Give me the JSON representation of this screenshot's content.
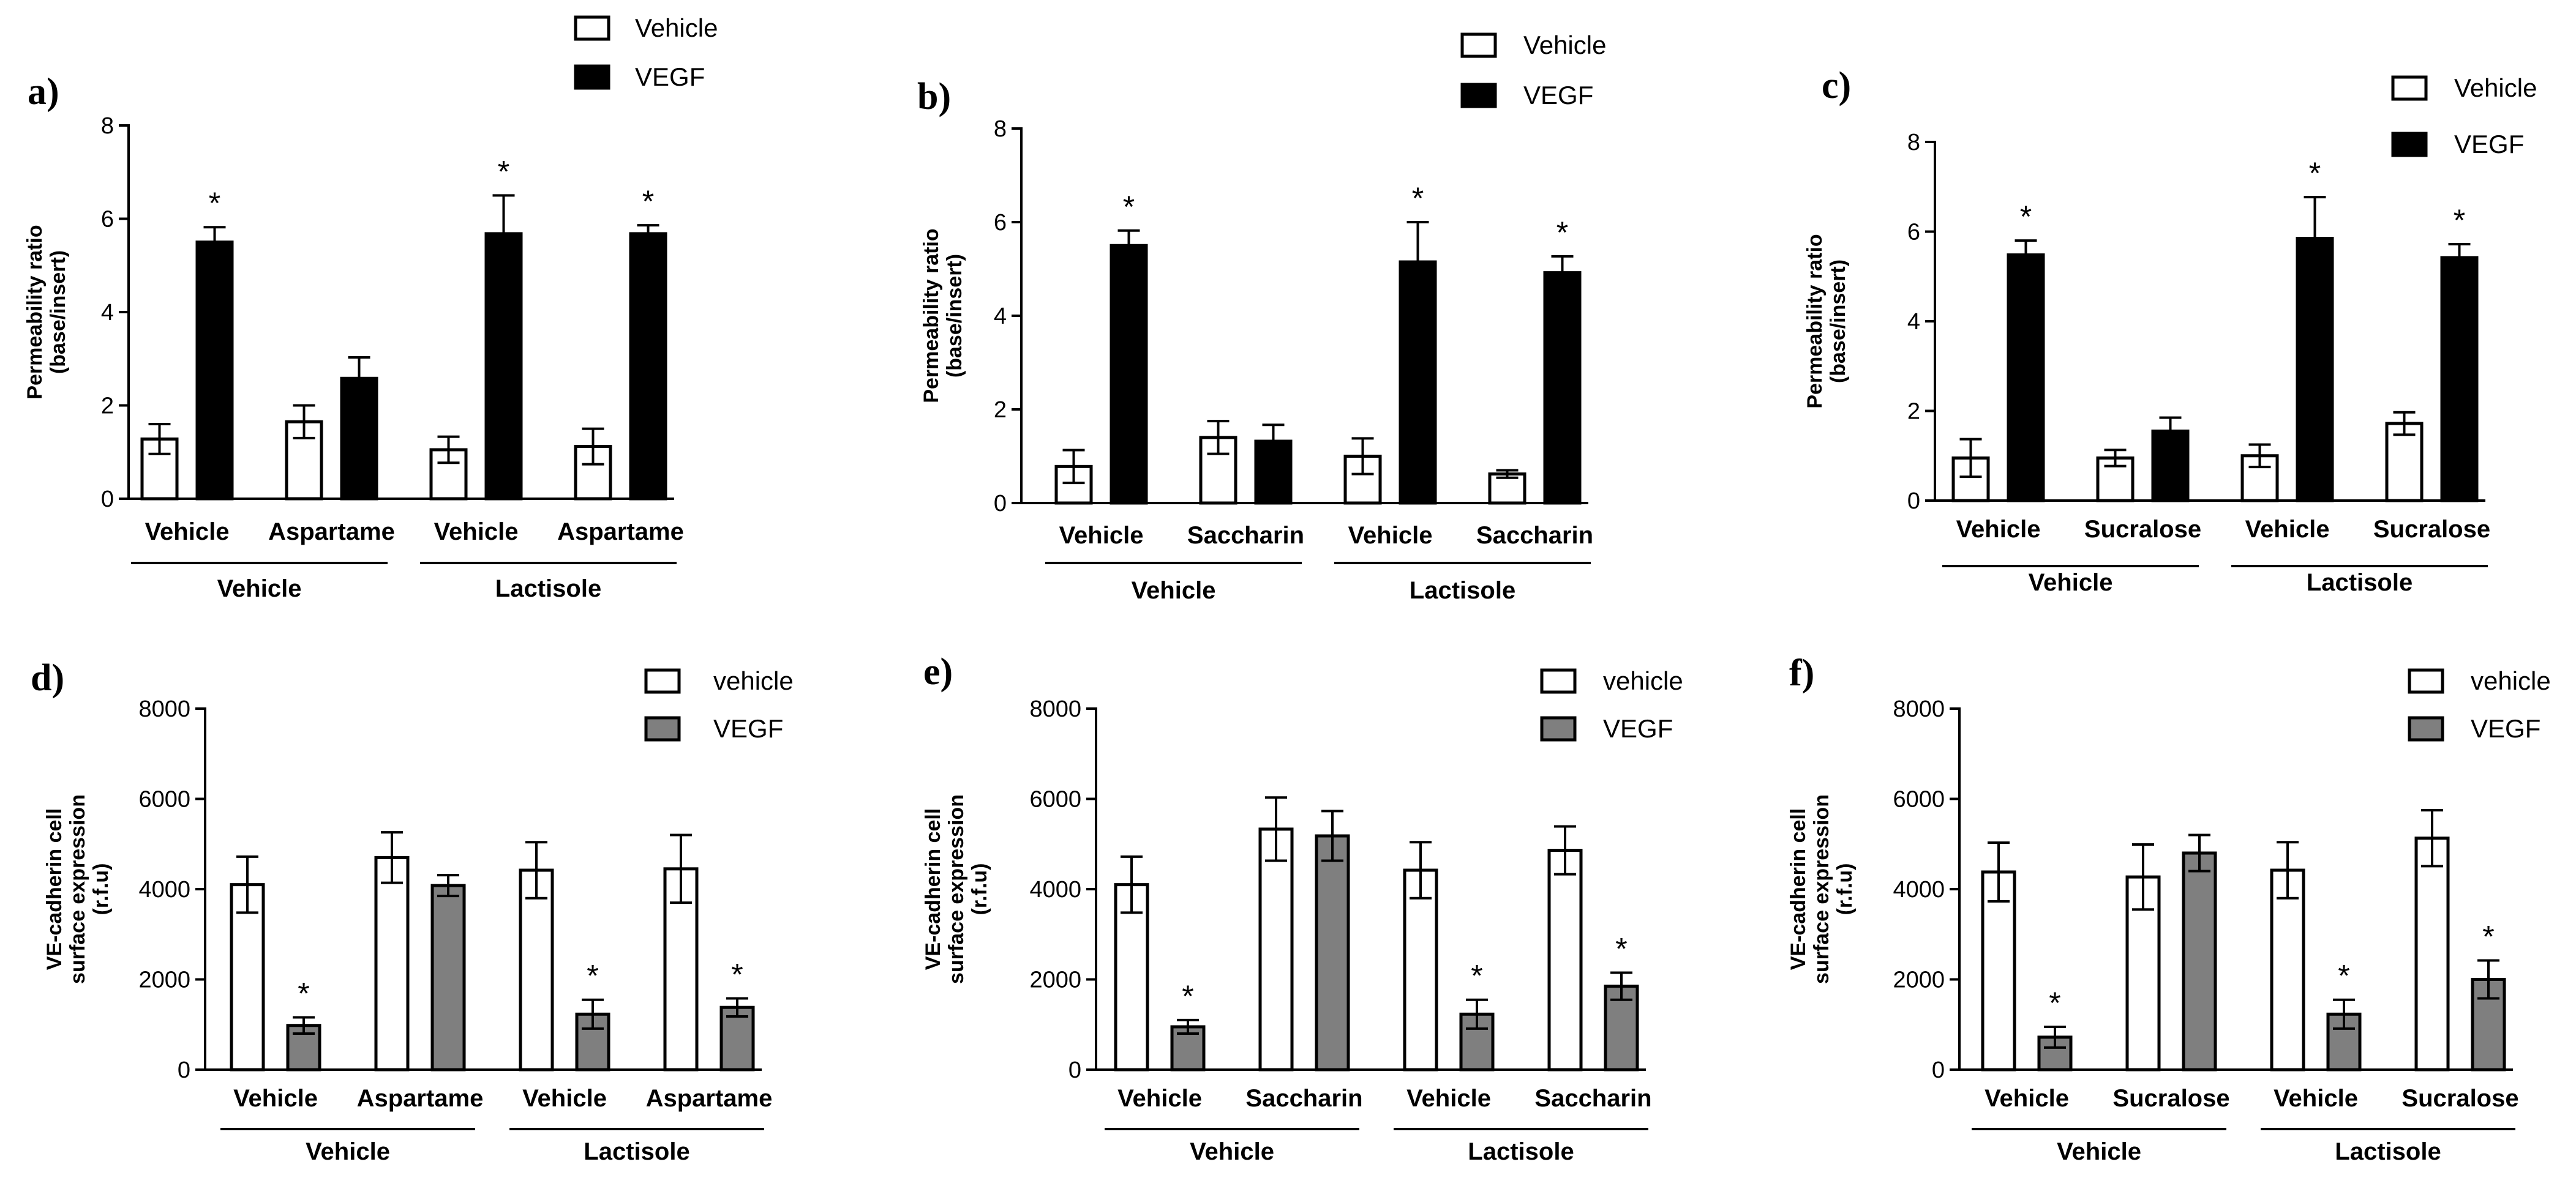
{
  "figure": {
    "panels": [
      "a",
      "b",
      "c",
      "d",
      "e",
      "f"
    ]
  },
  "chart_data": [
    {
      "panel": "a)",
      "type": "bar",
      "ylabel_lines": [
        "Permeability ratio",
        "(base/insert)"
      ],
      "ylim": [
        0,
        8
      ],
      "yticks": [
        0,
        2,
        4,
        6,
        8
      ],
      "categories": [
        "Vehicle",
        "Aspartame",
        "Vehicle",
        "Aspartame"
      ],
      "groups": [
        {
          "label": "Vehicle",
          "categories": [
            0,
            1
          ]
        },
        {
          "label": "Lactisole",
          "categories": [
            2,
            3
          ]
        }
      ],
      "legend": [
        {
          "label": "Vehicle",
          "style": "white"
        },
        {
          "label": "VEGF",
          "style": "black"
        }
      ],
      "series": [
        {
          "name": "Vehicle",
          "values": [
            1.28,
            1.65,
            1.05,
            1.12
          ],
          "errors": [
            0.32,
            0.35,
            0.28,
            0.38
          ]
        },
        {
          "name": "VEGF",
          "values": [
            5.5,
            2.58,
            5.68,
            5.68
          ],
          "errors": [
            0.32,
            0.45,
            0.82,
            0.18
          ]
        }
      ],
      "significance": [
        [
          false,
          true
        ],
        [
          false,
          false
        ],
        [
          false,
          true
        ],
        [
          false,
          true
        ]
      ],
      "significance_marker": "*"
    },
    {
      "panel": "b)",
      "type": "bar",
      "ylabel_lines": [
        "Permeability ratio",
        "(base/insert)"
      ],
      "ylim": [
        0,
        8
      ],
      "yticks": [
        0,
        2,
        4,
        6,
        8
      ],
      "categories": [
        "Vehicle",
        "Saccharin",
        "Vehicle",
        "Saccharin"
      ],
      "groups": [
        {
          "label": "Vehicle",
          "categories": [
            0,
            1
          ]
        },
        {
          "label": "Lactisole",
          "categories": [
            2,
            3
          ]
        }
      ],
      "legend": [
        {
          "label": "Vehicle",
          "style": "white"
        },
        {
          "label": "VEGF",
          "style": "black"
        }
      ],
      "series": [
        {
          "name": "Vehicle",
          "values": [
            0.78,
            1.4,
            1.0,
            0.62
          ],
          "errors": [
            0.35,
            0.35,
            0.38,
            0.08
          ]
        },
        {
          "name": "VEGF",
          "values": [
            5.5,
            1.32,
            5.15,
            4.92
          ],
          "errors": [
            0.32,
            0.35,
            0.85,
            0.35
          ]
        }
      ],
      "significance": [
        [
          false,
          true
        ],
        [
          false,
          false
        ],
        [
          false,
          true
        ],
        [
          false,
          true
        ]
      ],
      "significance_marker": "*"
    },
    {
      "panel": "c)",
      "type": "bar",
      "ylabel_lines": [
        "Permeability ratio",
        "(base/insert)"
      ],
      "ylim": [
        0,
        8
      ],
      "yticks": [
        0,
        2,
        4,
        6,
        8
      ],
      "categories": [
        "Vehicle",
        "Sucralose",
        "Vehicle",
        "Sucralose"
      ],
      "groups": [
        {
          "label": "Vehicle",
          "categories": [
            0,
            1
          ]
        },
        {
          "label": "Lactisole",
          "categories": [
            2,
            3
          ]
        }
      ],
      "legend": [
        {
          "label": "Vehicle",
          "style": "white"
        },
        {
          "label": "VEGF",
          "style": "black"
        }
      ],
      "series": [
        {
          "name": "Vehicle",
          "values": [
            0.95,
            0.95,
            1.0,
            1.72
          ],
          "errors": [
            0.42,
            0.18,
            0.25,
            0.25
          ]
        },
        {
          "name": "VEGF",
          "values": [
            5.48,
            1.55,
            5.85,
            5.42
          ],
          "errors": [
            0.32,
            0.3,
            0.92,
            0.3
          ]
        }
      ],
      "significance": [
        [
          false,
          true
        ],
        [
          false,
          false
        ],
        [
          false,
          true
        ],
        [
          false,
          true
        ]
      ],
      "significance_marker": "*"
    },
    {
      "panel": "d)",
      "type": "bar",
      "ylabel_lines": [
        "VE-cadherin cell",
        "surface expression",
        "(r.f.u)"
      ],
      "ylim": [
        0,
        8000
      ],
      "yticks": [
        0,
        2000,
        4000,
        6000,
        8000
      ],
      "categories": [
        "Vehicle",
        "Aspartame",
        "Vehicle",
        "Aspartame"
      ],
      "groups": [
        {
          "label": "Vehicle",
          "categories": [
            0,
            1
          ]
        },
        {
          "label": "Lactisole",
          "categories": [
            2,
            3
          ]
        }
      ],
      "legend": [
        {
          "label": "vehicle",
          "style": "white"
        },
        {
          "label": "VEGF",
          "style": "gray"
        }
      ],
      "series": [
        {
          "name": "vehicle",
          "values": [
            4100,
            4700,
            4420,
            4450
          ],
          "errors": [
            620,
            560,
            620,
            750
          ]
        },
        {
          "name": "VEGF",
          "values": [
            980,
            4080,
            1230,
            1380
          ],
          "errors": [
            180,
            230,
            320,
            200
          ]
        }
      ],
      "significance": [
        [
          false,
          true
        ],
        [
          false,
          false
        ],
        [
          false,
          true
        ],
        [
          false,
          true
        ]
      ],
      "significance_marker": "*"
    },
    {
      "panel": "e)",
      "type": "bar",
      "ylabel_lines": [
        "VE-cadherin cell",
        "surface expression",
        "(r.f.u)"
      ],
      "ylim": [
        0,
        8000
      ],
      "yticks": [
        0,
        2000,
        4000,
        6000,
        8000
      ],
      "categories": [
        "Vehicle",
        "Saccharin",
        "Vehicle",
        "Saccharin"
      ],
      "groups": [
        {
          "label": "Vehicle",
          "categories": [
            0,
            1
          ]
        },
        {
          "label": "Lactisole",
          "categories": [
            2,
            3
          ]
        }
      ],
      "legend": [
        {
          "label": "vehicle",
          "style": "white"
        },
        {
          "label": "VEGF",
          "style": "gray"
        }
      ],
      "series": [
        {
          "name": "vehicle",
          "values": [
            4100,
            5330,
            4420,
            4860
          ],
          "errors": [
            620,
            700,
            620,
            530
          ]
        },
        {
          "name": "VEGF",
          "values": [
            950,
            5180,
            1230,
            1850
          ],
          "errors": [
            150,
            550,
            320,
            300
          ]
        }
      ],
      "significance": [
        [
          false,
          true
        ],
        [
          false,
          false
        ],
        [
          false,
          true
        ],
        [
          false,
          true
        ]
      ],
      "significance_marker": "*"
    },
    {
      "panel": "f)",
      "type": "bar",
      "ylabel_lines": [
        "VE-cadherin cell",
        "surface expression",
        "(r.f.u)"
      ],
      "ylim": [
        0,
        8000
      ],
      "yticks": [
        0,
        2000,
        4000,
        6000,
        8000
      ],
      "categories": [
        "Vehicle",
        "Sucralose",
        "Vehicle",
        "Sucralose"
      ],
      "groups": [
        {
          "label": "Vehicle",
          "categories": [
            0,
            1
          ]
        },
        {
          "label": "Lactisole",
          "categories": [
            2,
            3
          ]
        }
      ],
      "legend": [
        {
          "label": "vehicle",
          "style": "white"
        },
        {
          "label": "VEGF",
          "style": "gray"
        }
      ],
      "series": [
        {
          "name": "vehicle",
          "values": [
            4380,
            4270,
            4420,
            5130
          ],
          "errors": [
            650,
            720,
            620,
            620
          ]
        },
        {
          "name": "VEGF",
          "values": [
            720,
            4800,
            1230,
            2000
          ],
          "errors": [
            230,
            400,
            320,
            420
          ]
        }
      ],
      "significance": [
        [
          false,
          true
        ],
        [
          false,
          false
        ],
        [
          false,
          true
        ],
        [
          false,
          true
        ]
      ],
      "significance_marker": "*"
    }
  ],
  "colors": {
    "white_bar": "#ffffff",
    "black_bar": "#000000",
    "gray_bar": "#7f7f7f",
    "stroke": "#000000"
  }
}
